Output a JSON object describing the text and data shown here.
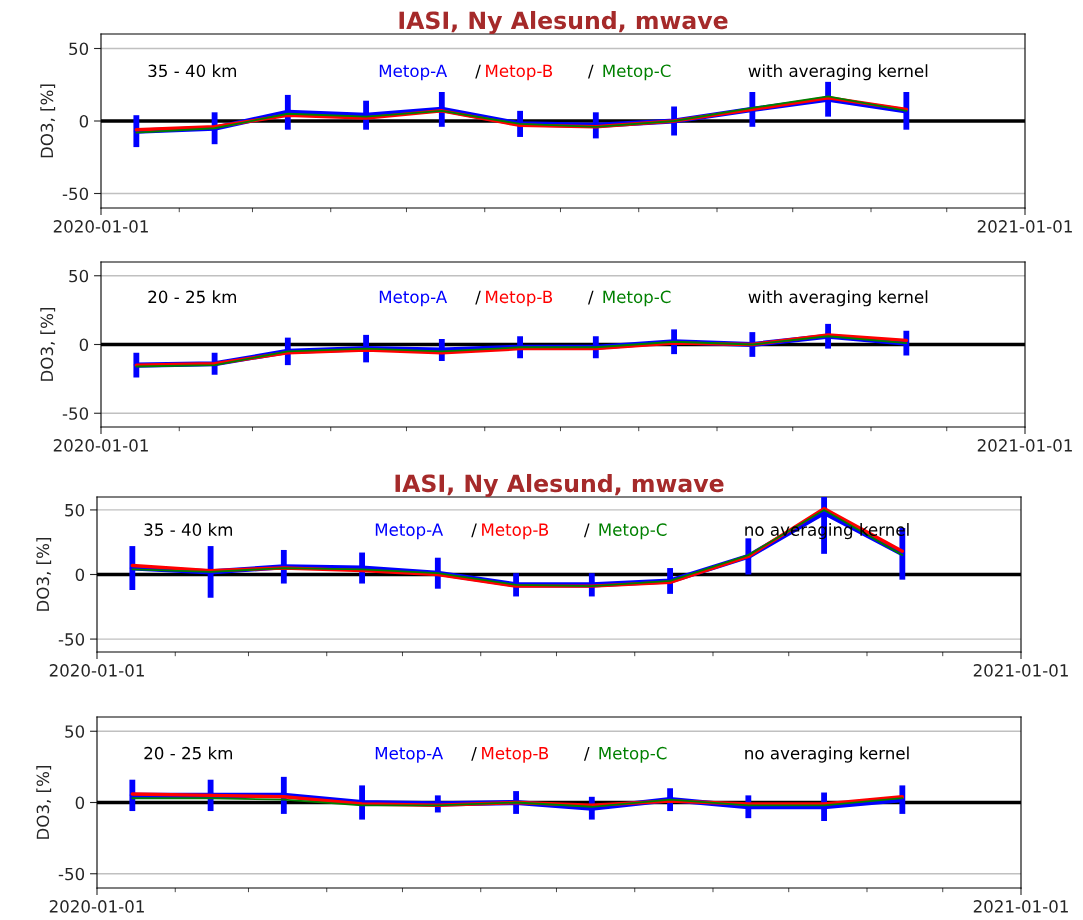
{
  "chart_data": [
    {
      "type": "line",
      "title": "IASI, Ny Alesund, mwave",
      "ylabel": "DO3, [%]",
      "annotations": [
        "35 - 40 km",
        "/",
        "/",
        "with averaging kernel"
      ],
      "x": [
        "2020-01-15",
        "2020-02-15",
        "2020-03-15",
        "2020-04-15",
        "2020-05-15",
        "2020-06-15",
        "2020-07-15",
        "2020-08-15",
        "2020-09-15",
        "2020-10-15",
        "2020-11-15"
      ],
      "series": [
        {
          "name": "Metop-A",
          "color": "#0000ff",
          "values": [
            -7,
            -5,
            6,
            4,
            8,
            -2,
            -3,
            0,
            8,
            15,
            7
          ],
          "errors": [
            11,
            11,
            12,
            10,
            12,
            9,
            9,
            10,
            12,
            12,
            13
          ]
        },
        {
          "name": "Metop-B",
          "color": "#ff0000",
          "values": [
            -6,
            -4,
            4,
            2,
            7,
            -3,
            -4,
            0,
            8,
            16,
            8
          ]
        },
        {
          "name": "Metop-C",
          "color": "#008000",
          "values": [
            -8,
            -5,
            5,
            3,
            7,
            -2,
            -4,
            0,
            9,
            17,
            7
          ]
        }
      ],
      "xlim": [
        "2020-01-01",
        "2021-01-01"
      ],
      "xticks": [
        "2020-01-01",
        "2021-01-01"
      ],
      "ylim": [
        -60,
        60
      ],
      "yticks": [
        -50,
        0,
        50
      ],
      "grid": "y",
      "ref_lines": [
        {
          "axis": "y",
          "value": 0,
          "color": "#000000"
        }
      ]
    },
    {
      "type": "line",
      "ylabel": "DO3, [%]",
      "annotations": [
        "20 - 25 km",
        "/",
        "/",
        "with averaging kernel"
      ],
      "x": [
        "2020-01-15",
        "2020-02-15",
        "2020-03-15",
        "2020-04-15",
        "2020-05-15",
        "2020-06-15",
        "2020-07-15",
        "2020-08-15",
        "2020-09-15",
        "2020-10-15",
        "2020-11-15"
      ],
      "series": [
        {
          "name": "Metop-A",
          "color": "#0000ff",
          "values": [
            -15,
            -14,
            -5,
            -3,
            -4,
            -2,
            -2,
            2,
            0,
            6,
            1
          ],
          "errors": [
            9,
            8,
            10,
            10,
            8,
            8,
            8,
            9,
            9,
            9,
            9
          ]
        },
        {
          "name": "Metop-B",
          "color": "#ff0000",
          "values": [
            -15,
            -14,
            -6,
            -4,
            -6,
            -3,
            -3,
            1,
            0,
            7,
            3
          ]
        },
        {
          "name": "Metop-C",
          "color": "#008000",
          "values": [
            -16,
            -15,
            -5,
            -3,
            -5,
            -2,
            -2,
            2,
            0,
            6,
            1
          ]
        }
      ],
      "xlim": [
        "2020-01-01",
        "2021-01-01"
      ],
      "xticks": [
        "2020-01-01",
        "2021-01-01"
      ],
      "ylim": [
        -60,
        60
      ],
      "yticks": [
        -50,
        0,
        50
      ],
      "grid": "y",
      "ref_lines": [
        {
          "axis": "y",
          "value": 0,
          "color": "#000000"
        }
      ]
    },
    {
      "type": "line",
      "title": "IASI, Ny Alesund, mwave",
      "ylabel": "DO3, [%]",
      "annotations": [
        "35 - 40 km",
        "/",
        "/",
        "no averaging kernel"
      ],
      "x": [
        "2020-01-15",
        "2020-02-15",
        "2020-03-15",
        "2020-04-15",
        "2020-05-15",
        "2020-06-15",
        "2020-07-15",
        "2020-08-15",
        "2020-09-15",
        "2020-10-15",
        "2020-11-15"
      ],
      "series": [
        {
          "name": "Metop-A",
          "color": "#0000ff",
          "values": [
            5,
            2,
            6,
            5,
            1,
            -8,
            -8,
            -5,
            14,
            48,
            16
          ],
          "errors": [
            17,
            20,
            13,
            12,
            12,
            9,
            9,
            10,
            14,
            32,
            20
          ]
        },
        {
          "name": "Metop-B",
          "color": "#ff0000",
          "values": [
            7,
            3,
            5,
            3,
            0,
            -9,
            -9,
            -6,
            14,
            51,
            18
          ]
        },
        {
          "name": "Metop-C",
          "color": "#008000",
          "values": [
            4,
            2,
            5,
            4,
            1,
            -8,
            -9,
            -5,
            15,
            50,
            15
          ]
        }
      ],
      "xlim": [
        "2020-01-01",
        "2021-01-01"
      ],
      "xticks": [
        "2020-01-01",
        "2021-01-01"
      ],
      "ylim": [
        -60,
        60
      ],
      "yticks": [
        -50,
        0,
        50
      ],
      "grid": "y",
      "ref_lines": [
        {
          "axis": "y",
          "value": 0,
          "color": "#000000"
        }
      ]
    },
    {
      "type": "line",
      "ylabel": "DO3, [%]",
      "annotations": [
        "20 - 25 km",
        "/",
        "/",
        "no averaging kernel"
      ],
      "x": [
        "2020-01-15",
        "2020-02-15",
        "2020-03-15",
        "2020-04-15",
        "2020-05-15",
        "2020-06-15",
        "2020-07-15",
        "2020-08-15",
        "2020-09-15",
        "2020-10-15",
        "2020-11-15"
      ],
      "series": [
        {
          "name": "Metop-A",
          "color": "#0000ff",
          "values": [
            5,
            5,
            5,
            0,
            -1,
            0,
            -4,
            2,
            -3,
            -3,
            2
          ],
          "errors": [
            11,
            11,
            13,
            12,
            6,
            8,
            8,
            8,
            8,
            10,
            10
          ]
        },
        {
          "name": "Metop-B",
          "color": "#ff0000",
          "values": [
            6,
            5,
            4,
            -1,
            -2,
            0,
            -2,
            1,
            -1,
            -1,
            4
          ]
        },
        {
          "name": "Metop-C",
          "color": "#008000",
          "values": [
            3,
            3,
            2,
            -2,
            -2,
            0,
            -3,
            2,
            -2,
            -2,
            3
          ]
        }
      ],
      "xlim": [
        "2020-01-01",
        "2021-01-01"
      ],
      "xticks": [
        "2020-01-01",
        "2021-01-01"
      ],
      "ylim": [
        -60,
        60
      ],
      "yticks": [
        -50,
        0,
        50
      ],
      "grid": "y",
      "ref_lines": [
        {
          "axis": "y",
          "value": 0,
          "color": "#000000"
        }
      ]
    }
  ]
}
